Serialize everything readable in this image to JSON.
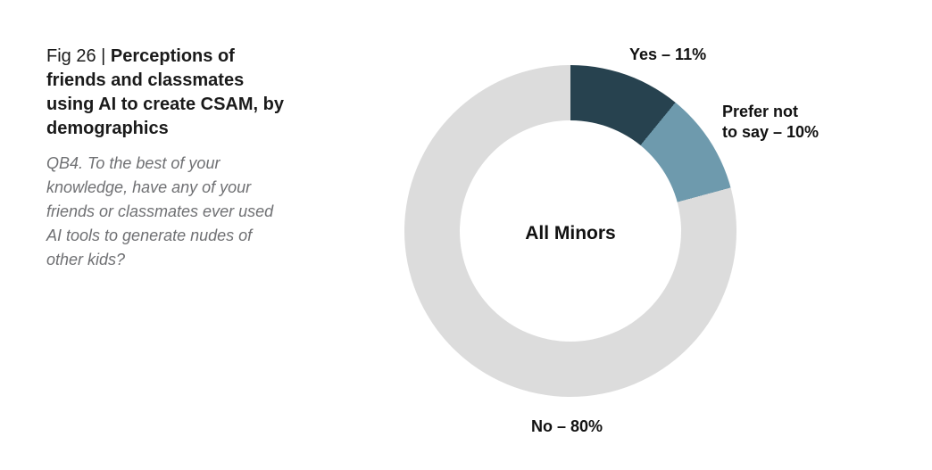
{
  "figure": {
    "fig_label": "Fig 26 | ",
    "title": "Perceptions of\nfriends and classmates\nusing AI to create CSAM, by\ndemographics",
    "subtitle": "QB4. To the best of your\nknowledge, have any of your\nfriends or classmates ever used\nAI tools to generate nudes of\nother kids?"
  },
  "chart_data": {
    "type": "pie",
    "subtype": "donut",
    "title": "Perceptions of friends and classmates using AI to create CSAM, by demographics",
    "group_label": "All Minors",
    "categories": [
      "Yes",
      "Prefer not to say",
      "No"
    ],
    "values": [
      11,
      10,
      80
    ],
    "unit": "%",
    "colors": [
      "#27424F",
      "#6E9AAD",
      "#DCDCDC"
    ],
    "start_angle_deg": 0,
    "direction": "clockwise",
    "inner_radius_ratio": 0.667,
    "annotations": {
      "yes": "Yes – 11%",
      "prefer": "Prefer not\nto say – 10%",
      "no": "No – 80%"
    },
    "legend_position": "none",
    "grid": false
  }
}
